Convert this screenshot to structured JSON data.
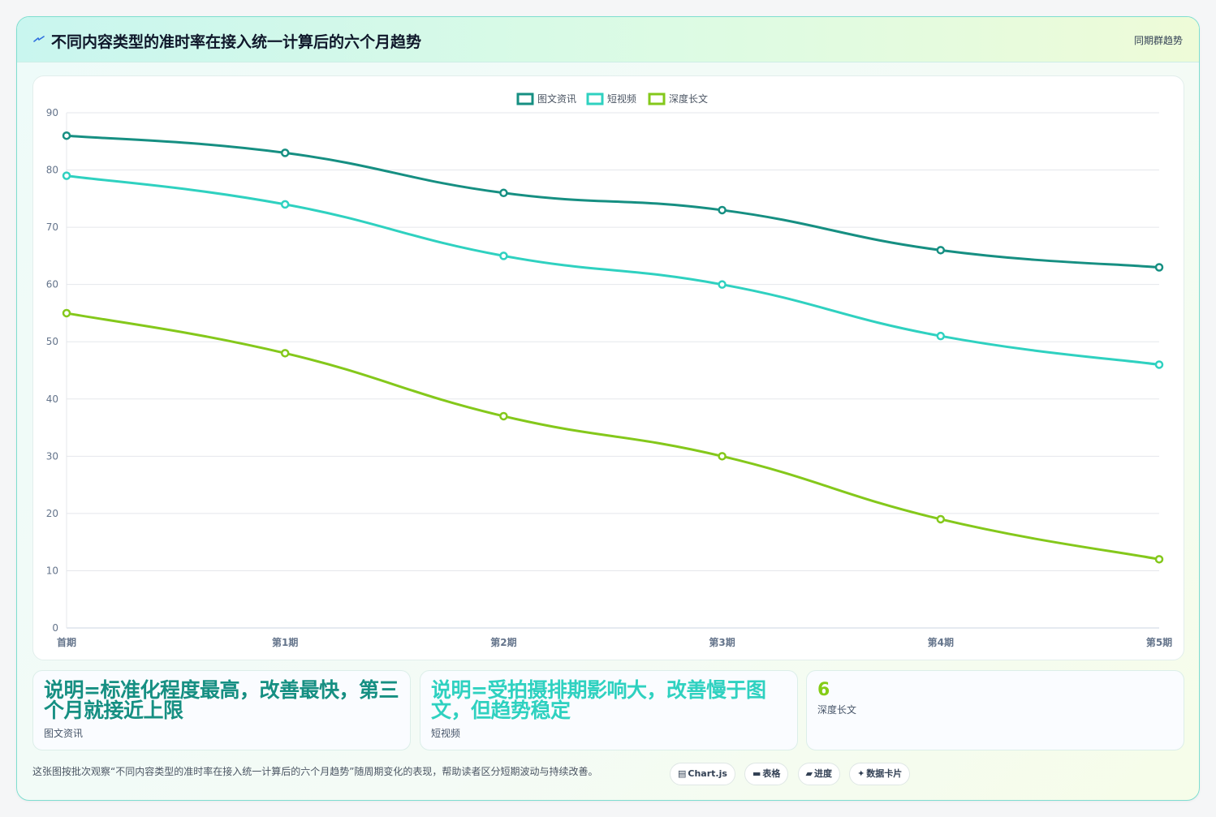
{
  "header": {
    "title": "不同内容类型的准时率在接入统一计算后的六个月趋势",
    "icon": "lightning-icon",
    "tag": "同期群趋势"
  },
  "chart_data": {
    "type": "line",
    "x": [
      "首期",
      "第1期",
      "第2期",
      "第3期",
      "第4期",
      "第5期"
    ],
    "ylim": [
      0,
      90
    ],
    "yticks": [
      0,
      10,
      20,
      30,
      40,
      50,
      60,
      70,
      80,
      90
    ],
    "grid": true,
    "legend": "top-center",
    "series": [
      {
        "name": "图文资讯",
        "color": "#168f82",
        "values": [
          86,
          83,
          76,
          73,
          66,
          63
        ]
      },
      {
        "name": "短视频",
        "color": "#2fd1c0",
        "values": [
          79,
          74,
          65,
          60,
          51,
          46
        ]
      },
      {
        "name": "深度长文",
        "color": "#84c81b",
        "values": [
          55,
          48,
          37,
          30,
          19,
          12
        ]
      }
    ]
  },
  "notes": [
    {
      "value": "说明=标准化程度最高，改善最快，第三个月就接近上限",
      "label": "图文资讯",
      "color": "#168f82"
    },
    {
      "value": "说明=受拍摄排期影响大，改善慢于图文，但趋势稳定",
      "label": "短视频",
      "color": "#2fd1c0"
    },
    {
      "value": "6",
      "label": "深度长文",
      "color": "#84cc16"
    }
  ],
  "footer": {
    "text": "这张图按批次观察“不同内容类型的准时率在接入统一计算后的六个月趋势”随周期变化的表现，帮助读者区分短期波动与持续改善。",
    "chips": [
      {
        "glyph": "▤",
        "icon": "chart-icon",
        "label": "Chart.js"
      },
      {
        "glyph": "▬",
        "icon": "table-icon",
        "label": "表格"
      },
      {
        "glyph": "▰",
        "icon": "progress-icon",
        "label": "进度"
      },
      {
        "glyph": "✦",
        "icon": "sparkle-icon",
        "label": "数据卡片"
      }
    ]
  }
}
